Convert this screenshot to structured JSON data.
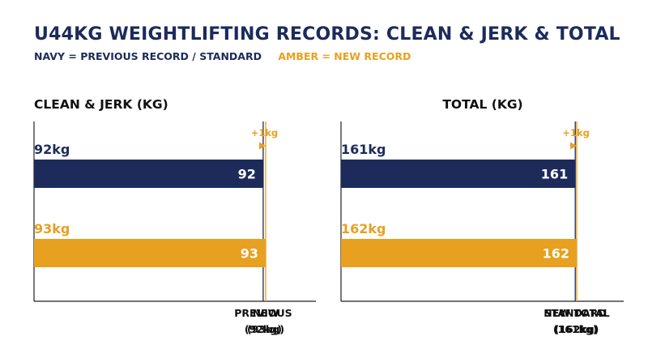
{
  "title": "U44KG WEIGHTLIFTING RECORDS: CLEAN & JERK & TOTAL",
  "legend": {
    "navy": "NAVY = PREVIOUS RECORD / STANDARD",
    "amber": "AMBER = NEW RECORD"
  },
  "colors": {
    "navy": "#1c2b5a",
    "amber": "#e8a020",
    "axis": "#222222"
  },
  "chart_data": [
    {
      "type": "bar",
      "orientation": "horizontal",
      "title": "CLEAN & JERK (KG)",
      "categories": [
        "92kg",
        "93kg"
      ],
      "values": [
        92,
        93
      ],
      "bar_labels": [
        "92",
        "93"
      ],
      "colors": [
        "navy",
        "amber"
      ],
      "reference_lines": [
        {
          "value": 92,
          "label_line1": "PREVIOUS",
          "label_line2": "(92kg)",
          "color": "navy"
        },
        {
          "value": 93,
          "label_line1": "NEW",
          "label_line2": "(93kg)",
          "color": "amber"
        }
      ],
      "annotation": "+1kg",
      "xlim": [
        0,
        95
      ]
    },
    {
      "type": "bar",
      "orientation": "horizontal",
      "title": "TOTAL (KG)",
      "categories": [
        "161kg",
        "162kg"
      ],
      "values": [
        161,
        162
      ],
      "bar_labels": [
        "161",
        "162"
      ],
      "colors": [
        "navy",
        "amber"
      ],
      "reference_lines": [
        {
          "value": 161,
          "label_line1": "STANDARD",
          "label_line2": "(161kg)",
          "color": "navy"
        },
        {
          "value": 162,
          "label_line1": "NEW TOTAL",
          "label_line2": "(162kg)",
          "color": "amber"
        }
      ],
      "annotation": "+1kg",
      "xlim": [
        0,
        163
      ]
    }
  ]
}
